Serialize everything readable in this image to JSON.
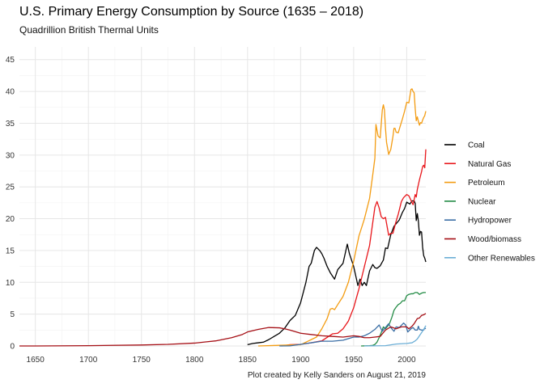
{
  "chart_data": {
    "type": "line",
    "title": "U.S. Primary Energy Consumption by Source (1635 – 2018)",
    "subtitle": "Quadrillion British Thermal Units",
    "caption": "Plot created by Kelly Sanders on August 21, 2019",
    "xlabel": "",
    "ylabel": "",
    "xlim": [
      1635,
      2018
    ],
    "ylim": [
      0,
      47
    ],
    "x_ticks": [
      1650,
      1700,
      1750,
      1800,
      1850,
      1900,
      1950,
      2000
    ],
    "y_ticks": [
      0,
      5,
      10,
      15,
      20,
      25,
      30,
      35,
      40,
      45
    ],
    "grid": true,
    "legend_position": "right",
    "series": [
      {
        "name": "Coal",
        "color": "#000000",
        "points": [
          [
            1850,
            0.2
          ],
          [
            1855,
            0.4
          ],
          [
            1860,
            0.5
          ],
          [
            1865,
            0.6
          ],
          [
            1870,
            1.0
          ],
          [
            1875,
            1.5
          ],
          [
            1880,
            2.0
          ],
          [
            1885,
            2.8
          ],
          [
            1890,
            4.0
          ],
          [
            1895,
            4.8
          ],
          [
            1900,
            6.8
          ],
          [
            1905,
            10.0
          ],
          [
            1908,
            12.5
          ],
          [
            1910,
            13.0
          ],
          [
            1913,
            15.0
          ],
          [
            1915,
            15.5
          ],
          [
            1918,
            15.0
          ],
          [
            1920,
            14.5
          ],
          [
            1922,
            13.8
          ],
          [
            1925,
            12.5
          ],
          [
            1928,
            11.5
          ],
          [
            1932,
            10.5
          ],
          [
            1935,
            12.0
          ],
          [
            1940,
            13.0
          ],
          [
            1944,
            16.0
          ],
          [
            1946,
            14.5
          ],
          [
            1948,
            13.5
          ],
          [
            1950,
            12.5
          ],
          [
            1952,
            11.0
          ],
          [
            1954,
            9.5
          ],
          [
            1956,
            10.5
          ],
          [
            1958,
            9.5
          ],
          [
            1960,
            10.0
          ],
          [
            1962,
            9.5
          ],
          [
            1965,
            11.8
          ],
          [
            1968,
            12.8
          ],
          [
            1970,
            12.3
          ],
          [
            1972,
            12.2
          ],
          [
            1975,
            12.6
          ],
          [
            1978,
            13.5
          ],
          [
            1980,
            15.4
          ],
          [
            1982,
            15.3
          ],
          [
            1985,
            17.5
          ],
          [
            1988,
            18.8
          ],
          [
            1990,
            19.2
          ],
          [
            1993,
            19.8
          ],
          [
            1996,
            21.0
          ],
          [
            1998,
            21.6
          ],
          [
            2000,
            22.6
          ],
          [
            2003,
            22.3
          ],
          [
            2005,
            22.8
          ],
          [
            2007,
            22.8
          ],
          [
            2008,
            22.4
          ],
          [
            2009,
            19.7
          ],
          [
            2010,
            20.8
          ],
          [
            2011,
            19.6
          ],
          [
            2012,
            17.4
          ],
          [
            2013,
            18.0
          ],
          [
            2014,
            17.9
          ],
          [
            2015,
            15.5
          ],
          [
            2016,
            14.2
          ],
          [
            2017,
            13.8
          ],
          [
            2018,
            13.2
          ]
        ]
      },
      {
        "name": "Natural Gas",
        "color": "#e8161b",
        "points": [
          [
            1882,
            0.0
          ],
          [
            1890,
            0.2
          ],
          [
            1900,
            0.25
          ],
          [
            1910,
            0.5
          ],
          [
            1920,
            0.8
          ],
          [
            1930,
            1.9
          ],
          [
            1935,
            2.0
          ],
          [
            1940,
            2.7
          ],
          [
            1945,
            3.9
          ],
          [
            1950,
            6.0
          ],
          [
            1955,
            9.0
          ],
          [
            1960,
            12.4
          ],
          [
            1965,
            15.8
          ],
          [
            1970,
            21.8
          ],
          [
            1972,
            22.7
          ],
          [
            1974,
            21.7
          ],
          [
            1976,
            20.3
          ],
          [
            1978,
            20.0
          ],
          [
            1980,
            20.2
          ],
          [
            1983,
            17.4
          ],
          [
            1985,
            17.7
          ],
          [
            1987,
            17.7
          ],
          [
            1990,
            19.6
          ],
          [
            1992,
            20.7
          ],
          [
            1995,
            22.7
          ],
          [
            1997,
            23.3
          ],
          [
            2000,
            23.8
          ],
          [
            2002,
            23.6
          ],
          [
            2004,
            22.9
          ],
          [
            2006,
            22.2
          ],
          [
            2008,
            23.8
          ],
          [
            2009,
            23.4
          ],
          [
            2010,
            24.6
          ],
          [
            2012,
            26.1
          ],
          [
            2014,
            27.4
          ],
          [
            2015,
            28.2
          ],
          [
            2016,
            28.4
          ],
          [
            2017,
            28.0
          ],
          [
            2018,
            30.9
          ]
        ]
      },
      {
        "name": "Petroleum",
        "color": "#f39c12",
        "points": [
          [
            1860,
            0.0
          ],
          [
            1880,
            0.1
          ],
          [
            1890,
            0.15
          ],
          [
            1900,
            0.2
          ],
          [
            1905,
            0.6
          ],
          [
            1910,
            1.0
          ],
          [
            1915,
            1.4
          ],
          [
            1920,
            2.7
          ],
          [
            1925,
            4.3
          ],
          [
            1928,
            5.8
          ],
          [
            1930,
            5.9
          ],
          [
            1932,
            5.7
          ],
          [
            1935,
            6.5
          ],
          [
            1940,
            7.8
          ],
          [
            1945,
            10.0
          ],
          [
            1950,
            13.3
          ],
          [
            1955,
            17.3
          ],
          [
            1960,
            19.9
          ],
          [
            1965,
            23.2
          ],
          [
            1968,
            26.9
          ],
          [
            1970,
            29.5
          ],
          [
            1971,
            34.8
          ],
          [
            1973,
            33.0
          ],
          [
            1975,
            32.7
          ],
          [
            1977,
            37.1
          ],
          [
            1978,
            37.9
          ],
          [
            1979,
            37.1
          ],
          [
            1980,
            34.2
          ],
          [
            1981,
            32.0
          ],
          [
            1983,
            30.1
          ],
          [
            1985,
            30.9
          ],
          [
            1987,
            32.9
          ],
          [
            1988,
            34.2
          ],
          [
            1989,
            34.2
          ],
          [
            1990,
            33.6
          ],
          [
            1992,
            33.5
          ],
          [
            1994,
            34.6
          ],
          [
            1996,
            35.7
          ],
          [
            1998,
            36.9
          ],
          [
            2000,
            38.3
          ],
          [
            2002,
            38.2
          ],
          [
            2004,
            40.3
          ],
          [
            2005,
            40.4
          ],
          [
            2006,
            40.0
          ],
          [
            2007,
            39.8
          ],
          [
            2008,
            37.3
          ],
          [
            2009,
            35.4
          ],
          [
            2010,
            36.0
          ],
          [
            2011,
            35.3
          ],
          [
            2012,
            34.7
          ],
          [
            2013,
            35.1
          ],
          [
            2014,
            35.0
          ],
          [
            2015,
            35.5
          ],
          [
            2016,
            35.9
          ],
          [
            2017,
            36.2
          ],
          [
            2018,
            36.9
          ]
        ]
      },
      {
        "name": "Nuclear",
        "color": "#238b45",
        "points": [
          [
            1957,
            0.0
          ],
          [
            1965,
            0.04
          ],
          [
            1968,
            0.1
          ],
          [
            1970,
            0.24
          ],
          [
            1972,
            0.6
          ],
          [
            1974,
            1.3
          ],
          [
            1976,
            2.1
          ],
          [
            1978,
            3.0
          ],
          [
            1980,
            2.7
          ],
          [
            1982,
            3.1
          ],
          [
            1984,
            3.6
          ],
          [
            1986,
            4.5
          ],
          [
            1988,
            5.6
          ],
          [
            1990,
            6.1
          ],
          [
            1992,
            6.5
          ],
          [
            1994,
            6.7
          ],
          [
            1996,
            7.1
          ],
          [
            1998,
            7.1
          ],
          [
            2000,
            7.9
          ],
          [
            2002,
            8.1
          ],
          [
            2004,
            8.2
          ],
          [
            2006,
            8.2
          ],
          [
            2008,
            8.4
          ],
          [
            2010,
            8.4
          ],
          [
            2012,
            8.1
          ],
          [
            2014,
            8.3
          ],
          [
            2016,
            8.4
          ],
          [
            2018,
            8.4
          ]
        ]
      },
      {
        "name": "Hydropower",
        "color": "#3a6ea5",
        "points": [
          [
            1880,
            0.0
          ],
          [
            1890,
            0.02
          ],
          [
            1900,
            0.25
          ],
          [
            1910,
            0.5
          ],
          [
            1920,
            0.75
          ],
          [
            1930,
            0.75
          ],
          [
            1940,
            0.9
          ],
          [
            1950,
            1.4
          ],
          [
            1955,
            1.4
          ],
          [
            1960,
            1.6
          ],
          [
            1965,
            2.0
          ],
          [
            1970,
            2.6
          ],
          [
            1974,
            3.3
          ],
          [
            1977,
            2.3
          ],
          [
            1980,
            2.9
          ],
          [
            1983,
            3.5
          ],
          [
            1985,
            2.9
          ],
          [
            1988,
            2.3
          ],
          [
            1990,
            3.0
          ],
          [
            1993,
            2.9
          ],
          [
            1997,
            3.6
          ],
          [
            1999,
            3.3
          ],
          [
            2001,
            2.2
          ],
          [
            2004,
            2.7
          ],
          [
            2006,
            2.9
          ],
          [
            2008,
            2.5
          ],
          [
            2010,
            2.5
          ],
          [
            2011,
            3.1
          ],
          [
            2012,
            2.6
          ],
          [
            2014,
            2.5
          ],
          [
            2016,
            2.5
          ],
          [
            2017,
            2.8
          ],
          [
            2018,
            2.7
          ]
        ]
      },
      {
        "name": "Wood/biomass",
        "color": "#a50f15",
        "points": [
          [
            1635,
            0.0
          ],
          [
            1650,
            0.0
          ],
          [
            1700,
            0.05
          ],
          [
            1750,
            0.15
          ],
          [
            1775,
            0.25
          ],
          [
            1800,
            0.45
          ],
          [
            1820,
            0.8
          ],
          [
            1835,
            1.3
          ],
          [
            1845,
            1.8
          ],
          [
            1850,
            2.2
          ],
          [
            1860,
            2.6
          ],
          [
            1870,
            2.9
          ],
          [
            1880,
            2.85
          ],
          [
            1885,
            2.7
          ],
          [
            1890,
            2.5
          ],
          [
            1900,
            2.0
          ],
          [
            1910,
            1.8
          ],
          [
            1920,
            1.6
          ],
          [
            1930,
            1.5
          ],
          [
            1940,
            1.4
          ],
          [
            1950,
            1.6
          ],
          [
            1955,
            1.5
          ],
          [
            1960,
            1.3
          ],
          [
            1965,
            1.3
          ],
          [
            1970,
            1.4
          ],
          [
            1975,
            1.5
          ],
          [
            1980,
            2.5
          ],
          [
            1985,
            3.0
          ],
          [
            1990,
            2.7
          ],
          [
            1995,
            3.0
          ],
          [
            2000,
            3.0
          ],
          [
            2002,
            2.7
          ],
          [
            2005,
            3.1
          ],
          [
            2007,
            3.5
          ],
          [
            2010,
            4.3
          ],
          [
            2012,
            4.4
          ],
          [
            2014,
            4.8
          ],
          [
            2016,
            4.9
          ],
          [
            2018,
            5.1
          ]
        ]
      },
      {
        "name": "Other Renewables",
        "color": "#6baed6",
        "points": [
          [
            1960,
            0.0
          ],
          [
            1980,
            0.05
          ],
          [
            1990,
            0.3
          ],
          [
            2000,
            0.4
          ],
          [
            2005,
            0.5
          ],
          [
            2008,
            0.8
          ],
          [
            2010,
            1.1
          ],
          [
            2012,
            1.6
          ],
          [
            2014,
            2.1
          ],
          [
            2016,
            2.6
          ],
          [
            2018,
            3.2
          ]
        ]
      }
    ]
  }
}
